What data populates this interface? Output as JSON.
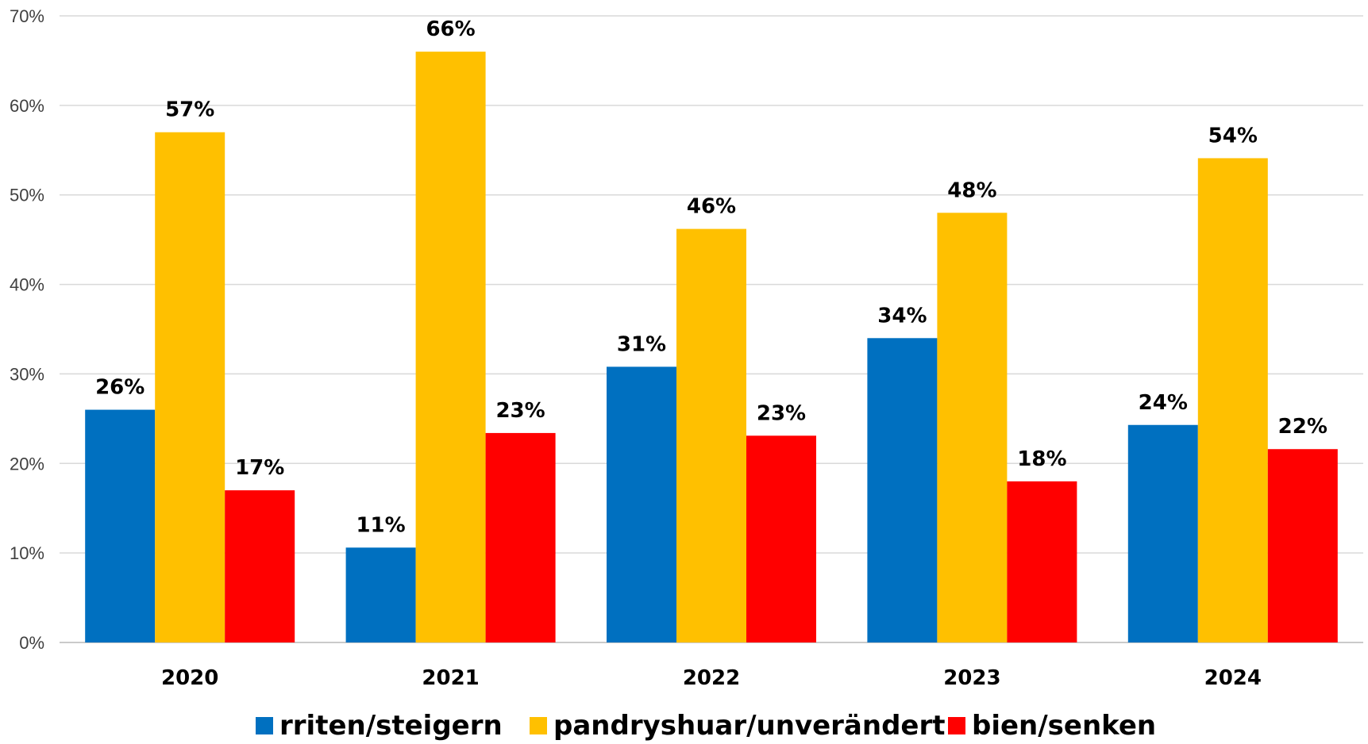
{
  "chart_data": {
    "type": "bar",
    "title": "",
    "xlabel": "",
    "ylabel": "",
    "categories": [
      "2020",
      "2021",
      "2022",
      "2023",
      "2024"
    ],
    "ylim": [
      0,
      70
    ],
    "yticks": [
      0,
      10,
      20,
      30,
      40,
      50,
      60,
      70
    ],
    "ytick_labels": [
      "0%",
      "10%",
      "20%",
      "30%",
      "40%",
      "50%",
      "60%",
      "70%"
    ],
    "grid": true,
    "legend_position": "bottom",
    "series": [
      {
        "name": "rriten/steigern",
        "color": "#0070C0",
        "values": [
          26,
          10.6,
          30.8,
          34,
          24.3
        ],
        "labels": [
          "26%",
          "11%",
          "31%",
          "34%",
          "24%"
        ]
      },
      {
        "name": "pandryshuar/unverändert",
        "color": "#FFC000",
        "values": [
          57,
          66,
          46.2,
          48,
          54.1
        ],
        "labels": [
          "57%",
          "66%",
          "46%",
          "48%",
          "54%"
        ]
      },
      {
        "name": "bien/senken",
        "color": "#FF0000",
        "values": [
          17,
          23.4,
          23.1,
          18,
          21.6
        ],
        "labels": [
          "17%",
          "23%",
          "23%",
          "18%",
          "22%"
        ]
      }
    ]
  }
}
